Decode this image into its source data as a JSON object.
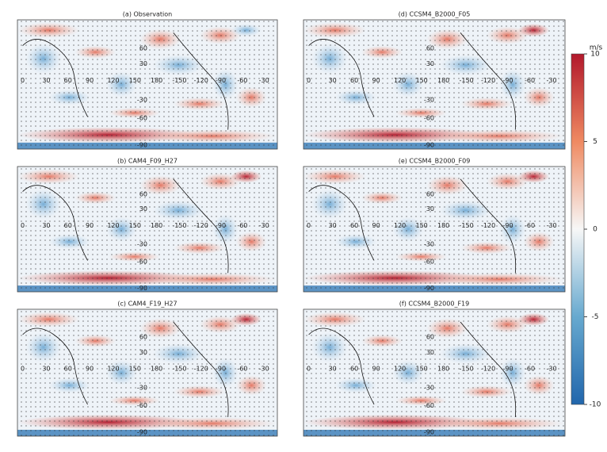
{
  "panels": [
    {
      "title": "(a) Observation"
    },
    {
      "title": "(d) CCSM4_B2000_F05"
    },
    {
      "title": "(b) CAM4_F09_H27"
    },
    {
      "title": "(e) CCSM4_B2000_F09"
    },
    {
      "title": "(c) CAM4_F19_H27"
    },
    {
      "title": "(f) CCSM4_B2000_F19"
    }
  ],
  "lon_labels": [
    "0",
    "30",
    "60",
    "90",
    "120",
    "150",
    "180",
    "-150",
    "-120",
    "-90",
    "-60",
    "-30"
  ],
  "lat_labels": [
    "60",
    "30",
    "-30",
    "-60",
    "-90"
  ],
  "colorbar": {
    "unit": "m/s",
    "lim": [
      -10,
      10
    ],
    "ticks": [
      10,
      5,
      0,
      -5,
      -10
    ]
  }
}
